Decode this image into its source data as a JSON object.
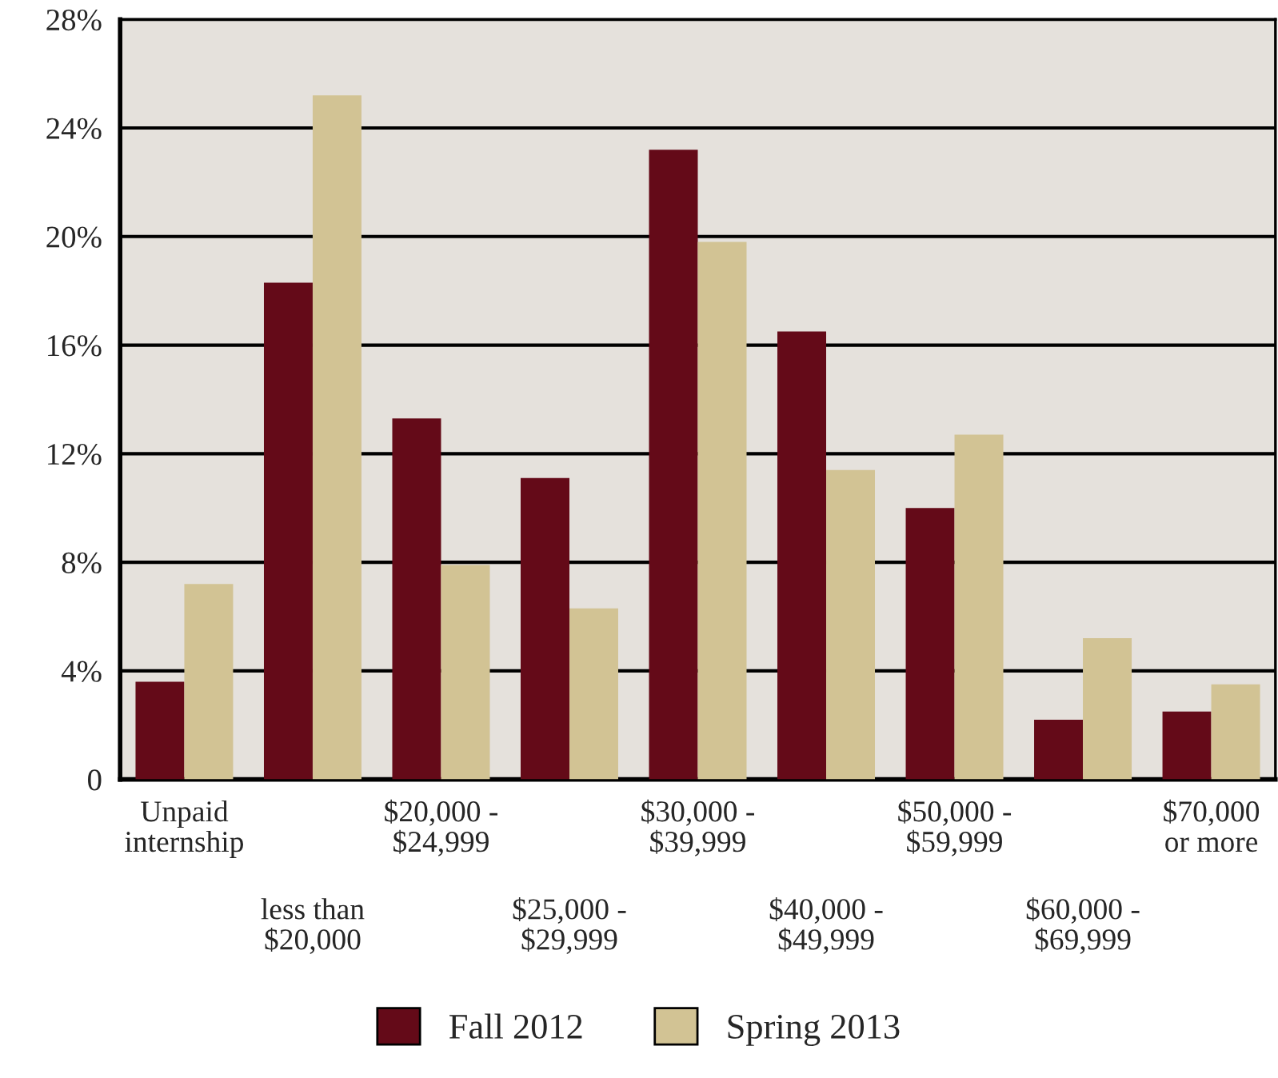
{
  "chart_data": {
    "type": "bar",
    "categories": [
      "Unpaid\ninternship",
      "less than\n$20,000",
      "$20,000 -\n$24,999",
      "$25,000 -\n$29,999",
      "$30,000 -\n$39,999",
      "$40,000 -\n$49,999",
      "$50,000 -\n$59,999",
      "$60,000 -\n$69,999",
      "$70,000\nor more"
    ],
    "series": [
      {
        "name": "Fall 2012",
        "color": "#640a18",
        "values": [
          3.6,
          18.3,
          13.3,
          11.1,
          23.2,
          16.5,
          10.0,
          2.2,
          2.5
        ]
      },
      {
        "name": "Spring 2013",
        "color": "#d2c394",
        "values": [
          7.2,
          25.2,
          7.9,
          6.3,
          19.8,
          11.4,
          12.7,
          5.2,
          3.5
        ]
      }
    ],
    "ylim": [
      0,
      28
    ],
    "yticks": [
      0,
      {
        "value": 4,
        "label": "4%"
      },
      {
        "value": 8,
        "label": "8%"
      },
      {
        "value": 12,
        "label": "12%"
      },
      {
        "value": 16,
        "label": "16%"
      },
      {
        "value": 20,
        "label": "20%"
      },
      {
        "value": 24,
        "label": "24%"
      },
      {
        "value": 28,
        "label": "28%"
      }
    ],
    "grid": "y",
    "legend": "bottom"
  }
}
